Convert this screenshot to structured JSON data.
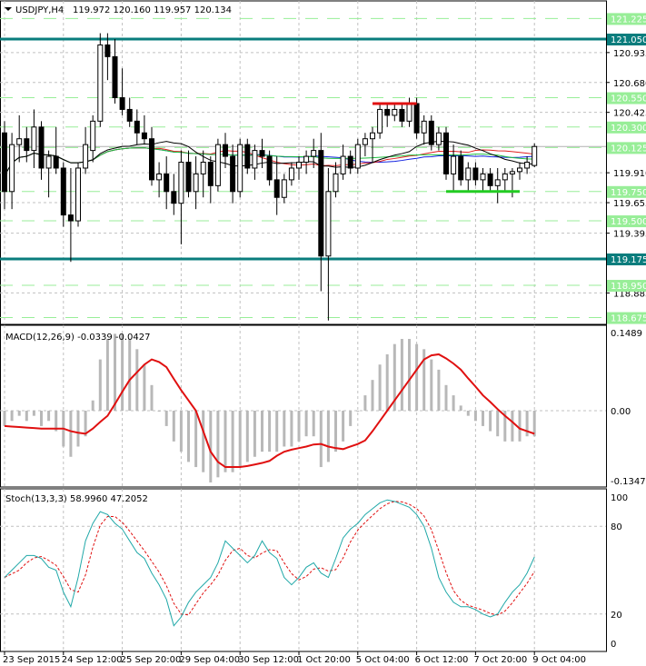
{
  "header": {
    "symbol": "USDJPY,H4",
    "ohlc": "119.972 120.160 119.957 120.134"
  },
  "price_axis": {
    "min": 118.63,
    "max": 121.32,
    "ticks": [
      "120.935",
      "120.680",
      "120.425",
      "119.910",
      "119.655",
      "119.395",
      "118.885"
    ],
    "tick_values": [
      120.935,
      120.68,
      120.425,
      119.91,
      119.655,
      119.395,
      118.885
    ]
  },
  "levels": [
    {
      "label": "121.225",
      "value": 121.225,
      "kind": "green"
    },
    {
      "label": "121.050",
      "value": 121.05,
      "kind": "teal"
    },
    {
      "label": "120.550",
      "value": 120.55,
      "kind": "green"
    },
    {
      "label": "120.300",
      "value": 120.3,
      "kind": "green"
    },
    {
      "label": "120.125",
      "value": 120.125,
      "kind": "green"
    },
    {
      "label": "119.750",
      "value": 119.75,
      "kind": "green"
    },
    {
      "label": "119.500",
      "value": 119.5,
      "kind": "green"
    },
    {
      "label": "119.175",
      "value": 119.175,
      "kind": "teal"
    },
    {
      "label": "118.950",
      "value": 118.95,
      "kind": "green"
    },
    {
      "label": "118.675",
      "value": 118.675,
      "kind": "green"
    }
  ],
  "colors": {
    "teal": "#0a7d7d",
    "green_level": "#98ee98",
    "bull": "#ffffff",
    "bear": "#000000",
    "red": "#e01010",
    "green_mark": "#22cc22",
    "ma_blue": "#1020e0",
    "ma_red": "#e02020",
    "ma_green": "#20c040",
    "ma_black": "#000000",
    "macd_hist": "#b8b8b8",
    "stoch_main": "#20a8a8",
    "stoch_signal": "#e01010"
  },
  "resistance_marker": {
    "value": 120.5,
    "from_bar": 50,
    "to_bar": 56
  },
  "support_marker": {
    "value": 119.75,
    "from_bar": 60,
    "to_bar": 70
  },
  "candles": [
    [
      120.25,
      120.35,
      119.6,
      119.75
    ],
    [
      119.75,
      120.25,
      119.6,
      120.15
    ],
    [
      120.15,
      120.4,
      120.0,
      120.2
    ],
    [
      120.2,
      120.3,
      120.0,
      120.1
    ],
    [
      120.1,
      120.45,
      119.95,
      120.3
    ],
    [
      120.3,
      120.35,
      119.85,
      119.95
    ],
    [
      119.95,
      120.1,
      119.7,
      120.05
    ],
    [
      120.05,
      120.3,
      119.9,
      119.95
    ],
    [
      119.95,
      120.0,
      119.45,
      119.55
    ],
    [
      119.55,
      119.95,
      119.15,
      119.5
    ],
    [
      119.5,
      120.0,
      119.45,
      119.95
    ],
    [
      119.95,
      120.3,
      119.9,
      120.15
    ],
    [
      120.1,
      120.4,
      120.0,
      120.35
    ],
    [
      120.35,
      121.1,
      120.3,
      121.0
    ],
    [
      121.0,
      121.1,
      120.7,
      120.9
    ],
    [
      120.9,
      121.05,
      120.5,
      120.55
    ],
    [
      120.55,
      120.8,
      120.4,
      120.45
    ],
    [
      120.45,
      120.55,
      120.3,
      120.35
    ],
    [
      120.35,
      120.45,
      120.15,
      120.25
    ],
    [
      120.25,
      120.4,
      120.15,
      120.2
    ],
    [
      120.2,
      120.3,
      119.8,
      119.85
    ],
    [
      119.85,
      120.0,
      119.7,
      119.9
    ],
    [
      119.9,
      120.05,
      119.6,
      119.75
    ],
    [
      119.75,
      119.9,
      119.55,
      119.65
    ],
    [
      119.65,
      120.1,
      119.3,
      120.0
    ],
    [
      120.0,
      120.1,
      119.7,
      119.75
    ],
    [
      119.75,
      120.05,
      119.6,
      119.9
    ],
    [
      119.9,
      120.1,
      119.7,
      120.0
    ],
    [
      120.0,
      120.05,
      119.65,
      119.8
    ],
    [
      119.8,
      120.2,
      119.75,
      120.15
    ],
    [
      120.15,
      120.25,
      119.95,
      120.05
    ],
    [
      120.05,
      120.15,
      119.65,
      119.75
    ],
    [
      119.75,
      120.2,
      119.7,
      120.15
    ],
    [
      120.15,
      120.2,
      119.9,
      119.95
    ],
    [
      119.95,
      120.15,
      119.85,
      120.1
    ],
    [
      120.1,
      120.2,
      119.95,
      120.05
    ],
    [
      120.05,
      120.1,
      119.8,
      119.85
    ],
    [
      119.85,
      120.05,
      119.55,
      119.7
    ],
    [
      119.7,
      119.9,
      119.65,
      119.85
    ],
    [
      119.85,
      120.0,
      119.8,
      119.95
    ],
    [
      119.95,
      120.05,
      119.85,
      120.0
    ],
    [
      120.0,
      120.1,
      119.9,
      120.05
    ],
    [
      120.05,
      120.2,
      119.95,
      120.1
    ],
    [
      120.1,
      120.25,
      118.9,
      119.2
    ],
    [
      119.2,
      119.95,
      118.65,
      119.75
    ],
    [
      119.75,
      120.0,
      119.7,
      119.9
    ],
    [
      119.9,
      120.15,
      119.85,
      120.05
    ],
    [
      120.05,
      120.1,
      119.9,
      119.95
    ],
    [
      119.95,
      120.2,
      119.9,
      120.15
    ],
    [
      120.15,
      120.25,
      120.05,
      120.2
    ],
    [
      120.2,
      120.3,
      120.0,
      120.25
    ],
    [
      120.25,
      120.5,
      120.2,
      120.45
    ],
    [
      120.45,
      120.5,
      120.3,
      120.4
    ],
    [
      120.4,
      120.5,
      120.35,
      120.45
    ],
    [
      120.45,
      120.5,
      120.3,
      120.35
    ],
    [
      120.35,
      120.55,
      120.3,
      120.5
    ],
    [
      120.5,
      120.55,
      120.2,
      120.25
    ],
    [
      120.25,
      120.4,
      120.15,
      120.35
    ],
    [
      120.35,
      120.4,
      120.1,
      120.15
    ],
    [
      120.15,
      120.3,
      120.1,
      120.25
    ],
    [
      120.25,
      120.3,
      119.85,
      119.9
    ],
    [
      119.9,
      120.15,
      119.75,
      120.05
    ],
    [
      120.05,
      120.1,
      119.8,
      119.85
    ],
    [
      119.85,
      120.0,
      119.75,
      119.95
    ],
    [
      119.95,
      120.0,
      119.8,
      119.85
    ],
    [
      119.85,
      119.95,
      119.75,
      119.9
    ],
    [
      119.9,
      119.95,
      119.75,
      119.8
    ],
    [
      119.8,
      119.95,
      119.65,
      119.85
    ],
    [
      119.85,
      119.95,
      119.75,
      119.9
    ],
    [
      119.9,
      119.95,
      119.7,
      119.92
    ],
    [
      119.92,
      120.0,
      119.85,
      119.95
    ],
    [
      119.95,
      120.05,
      119.9,
      120.0
    ],
    [
      119.972,
      120.16,
      119.957,
      120.134
    ]
  ],
  "ma_periods": {
    "blue": 34,
    "red": 21,
    "green": 55,
    "black": 13
  },
  "macd": {
    "title": "MACD(12,26,9) -0.0339 -0.0427",
    "max_label": "0.1489",
    "zero_label": "0.00",
    "min_label": "-0.1347",
    "max": 0.1489,
    "min": -0.1347,
    "histogram": [
      -0.03,
      -0.02,
      -0.01,
      -0.02,
      -0.01,
      -0.03,
      -0.02,
      -0.04,
      -0.07,
      -0.09,
      -0.07,
      -0.05,
      0.02,
      0.1,
      0.14,
      0.15,
      0.15,
      0.14,
      0.12,
      0.09,
      0.05,
      0.0,
      -0.03,
      -0.06,
      -0.08,
      -0.1,
      -0.11,
      -0.12,
      -0.14,
      -0.13,
      -0.12,
      -0.12,
      -0.11,
      -0.1,
      -0.09,
      -0.08,
      -0.08,
      -0.08,
      -0.07,
      -0.07,
      -0.06,
      -0.05,
      -0.05,
      -0.11,
      -0.1,
      -0.08,
      -0.06,
      -0.03,
      0.0,
      0.03,
      0.06,
      0.09,
      0.11,
      0.13,
      0.14,
      0.14,
      0.13,
      0.12,
      0.1,
      0.08,
      0.05,
      0.03,
      0.01,
      -0.01,
      -0.02,
      -0.03,
      -0.04,
      -0.05,
      -0.06,
      -0.06,
      -0.06,
      -0.05,
      -0.05
    ],
    "signal": [
      -0.03,
      -0.031,
      -0.032,
      -0.033,
      -0.034,
      -0.035,
      -0.035,
      -0.035,
      -0.035,
      -0.04,
      -0.043,
      -0.045,
      -0.035,
      -0.022,
      -0.01,
      0.013,
      0.037,
      0.06,
      0.075,
      0.09,
      0.1,
      0.095,
      0.085,
      0.062,
      0.04,
      0.02,
      0.0,
      -0.04,
      -0.08,
      -0.1,
      -0.11,
      -0.11,
      -0.11,
      -0.108,
      -0.105,
      -0.102,
      -0.098,
      -0.088,
      -0.08,
      -0.076,
      -0.073,
      -0.07,
      -0.066,
      -0.065,
      -0.07,
      -0.073,
      -0.075,
      -0.07,
      -0.065,
      -0.058,
      -0.04,
      -0.02,
      0.0,
      0.02,
      0.04,
      0.06,
      0.08,
      0.1,
      0.108,
      0.11,
      0.102,
      0.092,
      0.08,
      0.063,
      0.047,
      0.03,
      0.017,
      0.003,
      -0.01,
      -0.022,
      -0.035,
      -0.04,
      -0.045
    ]
  },
  "stoch": {
    "title": "Stoch(13,3,3) 58.9960 47.2052",
    "labels": [
      "100",
      "80",
      "20",
      "0"
    ],
    "label_values": [
      100,
      80,
      20,
      0
    ],
    "main": [
      45,
      50,
      55,
      60,
      60,
      58,
      52,
      50,
      35,
      25,
      45,
      70,
      82,
      90,
      88,
      82,
      78,
      70,
      62,
      58,
      48,
      40,
      30,
      12,
      18,
      28,
      35,
      40,
      45,
      55,
      70,
      65,
      60,
      55,
      60,
      70,
      62,
      58,
      45,
      40,
      45,
      52,
      55,
      48,
      45,
      58,
      72,
      78,
      82,
      88,
      92,
      96,
      98,
      97,
      95,
      93,
      88,
      80,
      65,
      45,
      35,
      28,
      25,
      25,
      23,
      20,
      18,
      20,
      28,
      35,
      40,
      48,
      59
    ],
    "signal_smoothing": 3
  },
  "time_axis": [
    {
      "label": "23 Sep 2015",
      "bar": 0
    },
    {
      "label": "24 Sep 12:00",
      "bar": 8
    },
    {
      "label": "25 Sep 20:00",
      "bar": 16
    },
    {
      "label": "29 Sep 04:00",
      "bar": 24
    },
    {
      "label": "30 Sep 12:00",
      "bar": 32
    },
    {
      "label": "1 Oct 20:00",
      "bar": 40
    },
    {
      "label": "5 Oct 04:00",
      "bar": 48
    },
    {
      "label": "6 Oct 12:00",
      "bar": 56
    },
    {
      "label": "7 Oct 20:00",
      "bar": 64
    },
    {
      "label": "9 Oct 04:00",
      "bar": 72
    }
  ]
}
